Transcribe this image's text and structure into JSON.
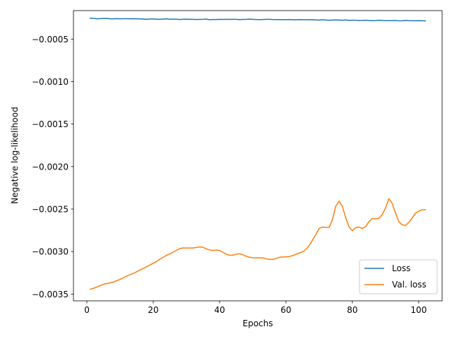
{
  "chart_data": {
    "type": "line",
    "title": "",
    "xlabel": "Epochs",
    "ylabel": "Negative log-likelihood",
    "xlim": [
      -4.05,
      107.05
    ],
    "ylim": [
      -0.00358,
      -0.000165
    ],
    "xticks": [
      0,
      20,
      40,
      60,
      80,
      100
    ],
    "xtick_labels": [
      "0",
      "20",
      "40",
      "60",
      "80",
      "100"
    ],
    "yticks": [
      -0.0005,
      -0.001,
      -0.0015,
      -0.002,
      -0.0025,
      -0.003,
      -0.0035
    ],
    "ytick_labels": [
      "−0.0005",
      "−0.0010",
      "−0.0015",
      "−0.0020",
      "−0.0025",
      "−0.0030",
      "−0.0035"
    ],
    "grid": false,
    "legend_position": "lower-right",
    "series": [
      {
        "name": "Loss",
        "color": "#1f77b4",
        "x": [
          1,
          2,
          3,
          4,
          5,
          6,
          7,
          8,
          9,
          10,
          11,
          12,
          13,
          14,
          15,
          16,
          17,
          18,
          19,
          20,
          21,
          22,
          23,
          24,
          25,
          26,
          27,
          28,
          29,
          30,
          31,
          32,
          33,
          34,
          35,
          36,
          37,
          38,
          39,
          40,
          41,
          42,
          43,
          44,
          45,
          46,
          47,
          48,
          49,
          50,
          51,
          52,
          53,
          54,
          55,
          56,
          57,
          58,
          59,
          60,
          61,
          62,
          63,
          64,
          65,
          66,
          67,
          68,
          69,
          70,
          71,
          72,
          73,
          74,
          75,
          76,
          77,
          78,
          79,
          80,
          81,
          82,
          83,
          84,
          85,
          86,
          87,
          88,
          89,
          90,
          91,
          92,
          93,
          94,
          95,
          96,
          97,
          98,
          99,
          100,
          101,
          102
        ],
        "y": [
          -0.000255,
          -0.000256,
          -0.000262,
          -0.00026,
          -0.000258,
          -0.000257,
          -0.000262,
          -0.000262,
          -0.00026,
          -0.000262,
          -0.000261,
          -0.000261,
          -0.000262,
          -0.000261,
          -0.000262,
          -0.000264,
          -0.000264,
          -0.000268,
          -0.000264,
          -0.000264,
          -0.000266,
          -0.000267,
          -0.000265,
          -0.000262,
          -0.000267,
          -0.000266,
          -0.000266,
          -0.00027,
          -0.000267,
          -0.000266,
          -0.000268,
          -0.000268,
          -0.00027,
          -0.000269,
          -0.000268,
          -0.000266,
          -0.000272,
          -0.00027,
          -0.00027,
          -0.000268,
          -0.000269,
          -0.000268,
          -0.000268,
          -0.000268,
          -0.000268,
          -0.000271,
          -0.000269,
          -0.000268,
          -0.000266,
          -0.000268,
          -0.00027,
          -0.000271,
          -0.00027,
          -0.000268,
          -0.000268,
          -0.00027,
          -0.000271,
          -0.000271,
          -0.000271,
          -0.000272,
          -0.00027,
          -0.000273,
          -0.000273,
          -0.000271,
          -0.000272,
          -0.000272,
          -0.000273,
          -0.000272,
          -0.000275,
          -0.000276,
          -0.000273,
          -0.000276,
          -0.000278,
          -0.000276,
          -0.000275,
          -0.000276,
          -0.000278,
          -0.000275,
          -0.00028,
          -0.000278,
          -0.000278,
          -0.000282,
          -0.000281,
          -0.000278,
          -0.000281,
          -0.000283,
          -0.000282,
          -0.000278,
          -0.000281,
          -0.000283,
          -0.000283,
          -0.000283,
          -0.000281,
          -0.000285,
          -0.000284,
          -0.00028,
          -0.000283,
          -0.000284,
          -0.000284,
          -0.000283,
          -0.000284,
          -0.000286
        ]
      },
      {
        "name": "Val. loss",
        "color": "#ff7f0e",
        "x": [
          1,
          2,
          3,
          4,
          5,
          6,
          7,
          8,
          9,
          10,
          11,
          12,
          13,
          14,
          15,
          16,
          17,
          18,
          19,
          20,
          21,
          22,
          23,
          24,
          25,
          26,
          27,
          28,
          29,
          30,
          31,
          32,
          33,
          34,
          35,
          36,
          37,
          38,
          39,
          40,
          41,
          42,
          43,
          44,
          45,
          46,
          47,
          48,
          49,
          50,
          51,
          52,
          53,
          54,
          55,
          56,
          57,
          58,
          59,
          60,
          61,
          62,
          63,
          64,
          65,
          66,
          67,
          68,
          69,
          70,
          71,
          72,
          73,
          74,
          75,
          76,
          77,
          78,
          79,
          80,
          81,
          82,
          83,
          84,
          85,
          86,
          87,
          88,
          89,
          90,
          91,
          92,
          93,
          94,
          95,
          96,
          97,
          98,
          99,
          100,
          101,
          102
        ],
        "y": [
          -0.003443,
          -0.003432,
          -0.003418,
          -0.0034,
          -0.003385,
          -0.003375,
          -0.003368,
          -0.003358,
          -0.003343,
          -0.003327,
          -0.003308,
          -0.003288,
          -0.003272,
          -0.003257,
          -0.003238,
          -0.003217,
          -0.003198,
          -0.00318,
          -0.003158,
          -0.003138,
          -0.003117,
          -0.00309,
          -0.003067,
          -0.003045,
          -0.003027,
          -0.003008,
          -0.002985,
          -0.002965,
          -0.002957,
          -0.002959,
          -0.002958,
          -0.002958,
          -0.002952,
          -0.002945,
          -0.00295,
          -0.002968,
          -0.002982,
          -0.002987,
          -0.002983,
          -0.002988,
          -0.003008,
          -0.003032,
          -0.003043,
          -0.003043,
          -0.003032,
          -0.003025,
          -0.003038,
          -0.003055,
          -0.003067,
          -0.003073,
          -0.003075,
          -0.003073,
          -0.003075,
          -0.003085,
          -0.003093,
          -0.003093,
          -0.003082,
          -0.003068,
          -0.003063,
          -0.003063,
          -0.003058,
          -0.003048,
          -0.003032,
          -0.003017,
          -0.003003,
          -0.002975,
          -0.002928,
          -0.002865,
          -0.002798,
          -0.002728,
          -0.002712,
          -0.002715,
          -0.002715,
          -0.002625,
          -0.002465,
          -0.002408,
          -0.002468,
          -0.002603,
          -0.002708,
          -0.002755,
          -0.002718,
          -0.002712,
          -0.002728,
          -0.002708,
          -0.002648,
          -0.002612,
          -0.002615,
          -0.002608,
          -0.002565,
          -0.002488,
          -0.002378,
          -0.002432,
          -0.002545,
          -0.002648,
          -0.002685,
          -0.002692,
          -0.002658,
          -0.002605,
          -0.002548,
          -0.002525,
          -0.002508,
          -0.002508
        ]
      }
    ]
  }
}
